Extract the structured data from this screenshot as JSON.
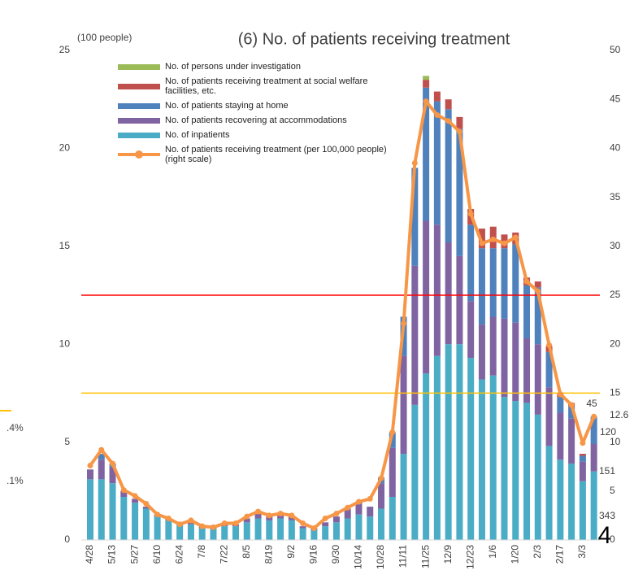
{
  "chart_data": {
    "type": "bar",
    "title": "(6) No. of patients receiving treatment",
    "y_unit_label": "(100 people)",
    "categories": [
      "4/28",
      null,
      "5/13",
      null,
      "5/27",
      null,
      "6/10",
      null,
      "6/24",
      null,
      "7/8",
      null,
      "7/22",
      null,
      "8/5",
      null,
      "8/19",
      null,
      "9/2",
      null,
      "9/16",
      null,
      "9/30",
      null,
      "10/14",
      null,
      "10/28",
      null,
      "11/11",
      null,
      "11/25",
      null,
      "12/9",
      null,
      "12/23",
      null,
      "1/6",
      null,
      "1/20",
      null,
      "2/3",
      null,
      "2/17",
      null,
      "3/3",
      null
    ],
    "ylim": [
      0,
      25
    ],
    "yticks": [
      0,
      5,
      10,
      15,
      20,
      25
    ],
    "y2lim": [
      0,
      50
    ],
    "y2ticks": [
      0,
      5,
      10,
      15,
      20,
      25,
      30,
      35,
      40,
      45,
      50
    ],
    "legend": "upper left",
    "series": [
      {
        "name": "No. of inpatients",
        "color": "#4bacc6",
        "values": [
          3.1,
          3.1,
          2.9,
          2.2,
          1.9,
          1.6,
          1.2,
          1.0,
          0.8,
          0.8,
          0.6,
          0.6,
          0.7,
          0.7,
          0.9,
          1.1,
          1.0,
          1.1,
          1.0,
          0.6,
          0.5,
          0.7,
          0.9,
          1.1,
          1.3,
          1.2,
          1.6,
          2.2,
          4.4,
          6.9,
          8.5,
          9.4,
          10.0,
          10.0,
          9.3,
          8.2,
          8.4,
          7.3,
          7.1,
          7.0,
          6.4,
          4.8,
          4.1,
          3.9,
          3.0,
          3.5
        ]
      },
      {
        "name": "No. of patients recovering at accommodations",
        "color": "#8064a2",
        "values": [
          0.5,
          1.0,
          0.8,
          0.3,
          0.2,
          0.1,
          0.1,
          0.1,
          0.1,
          0.1,
          0.1,
          0.1,
          0.1,
          0.1,
          0.2,
          0.3,
          0.2,
          0.2,
          0.2,
          0.1,
          0.1,
          0.2,
          0.3,
          0.5,
          0.6,
          0.5,
          1.3,
          2.5,
          5.0,
          7.1,
          7.8,
          6.7,
          5.2,
          4.5,
          2.9,
          2.8,
          3.0,
          4.0,
          4.0,
          3.3,
          3.6,
          3.0,
          2.4,
          2.3,
          1.0,
          1.4
        ]
      },
      {
        "name": "No. of patients staying at home",
        "color": "#4f81bd",
        "values": [
          0,
          0.3,
          0.2,
          0,
          0,
          0,
          0,
          0,
          0,
          0,
          0,
          0,
          0,
          0,
          0,
          0,
          0,
          0,
          0,
          0,
          0,
          0,
          0,
          0,
          0,
          0,
          0.3,
          0.8,
          2.0,
          5.0,
          6.8,
          6.3,
          6.8,
          6.5,
          3.9,
          3.9,
          3.5,
          3.6,
          4.0,
          2.7,
          2.9,
          1.8,
          0.8,
          0.6,
          0.3,
          1.4
        ]
      },
      {
        "name": "No. of patients receiving treatment at social welfare facilities, etc.",
        "color": "#c0504d",
        "values": [
          0,
          0,
          0,
          0,
          0,
          0,
          0,
          0,
          0,
          0,
          0,
          0,
          0,
          0,
          0,
          0,
          0,
          0,
          0,
          0,
          0,
          0,
          0,
          0,
          0,
          0,
          0,
          0,
          0,
          0,
          0.4,
          0.5,
          0.5,
          0.6,
          0.8,
          1.0,
          1.1,
          0.7,
          0.6,
          0.4,
          0.3,
          0.3,
          0.2,
          0.2,
          0.1,
          0
        ]
      },
      {
        "name": "No. of persons under investigation",
        "color": "#9bbb59",
        "values": [
          0,
          0,
          0,
          0,
          0,
          0,
          0,
          0,
          0,
          0,
          0,
          0,
          0,
          0,
          0,
          0,
          0,
          0,
          0,
          0,
          0,
          0,
          0,
          0,
          0,
          0,
          0,
          0,
          0,
          0,
          0.2,
          0,
          0,
          0,
          0,
          0,
          0,
          0,
          0,
          0,
          0,
          0,
          0,
          0,
          0,
          0
        ]
      },
      {
        "name": "No. of patients receiving treatment (per 100,000 people) (right scale)",
        "color": "#f79646",
        "type": "line",
        "axis": "y2",
        "values": [
          7.6,
          9.2,
          7.8,
          5.1,
          4.5,
          3.7,
          2.6,
          2.2,
          1.6,
          2.0,
          1.4,
          1.3,
          1.7,
          1.7,
          2.4,
          2.9,
          2.5,
          2.7,
          2.5,
          1.7,
          1.2,
          2.2,
          2.7,
          3.3,
          3.9,
          4.2,
          6.3,
          11.0,
          22.1,
          38.5,
          44.8,
          43.4,
          42.8,
          41.7,
          33.3,
          30.3,
          30.7,
          30.3,
          30.9,
          26.4,
          25.4,
          19.9,
          14.9,
          13.8,
          9.9,
          12.6
        ]
      }
    ],
    "reference_lines": [
      {
        "axis": "y2",
        "value": 25,
        "color": "#ff0000"
      },
      {
        "axis": "y2",
        "value": 15,
        "color": "#ffc000"
      }
    ],
    "annotations": [
      "45",
      "12.6",
      "120",
      "151",
      "343",
      "4",
      ".4%",
      ".1%"
    ]
  }
}
